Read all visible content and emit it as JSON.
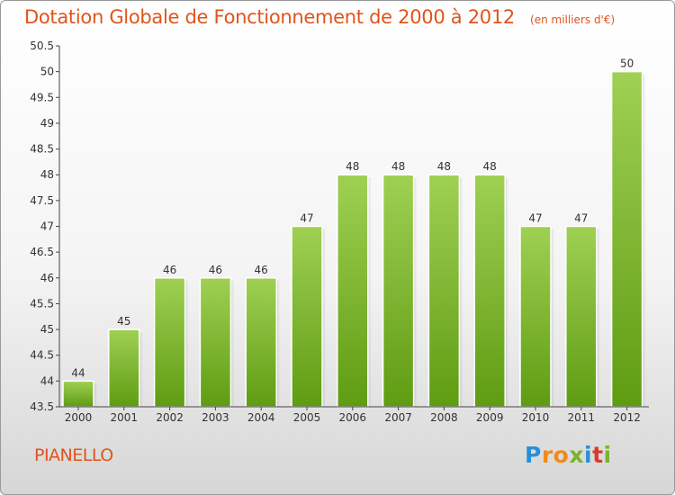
{
  "header": {
    "title": "Dotation Globale de Fonctionnement de 2000 à 2012",
    "unit_note": "(en milliers d'€)"
  },
  "footer": {
    "commune": "PIANELLO",
    "logo_letters": [
      "P",
      "r",
      "o",
      "x",
      "i",
      "t",
      "i"
    ],
    "logo_colors": [
      "#2a8fd6",
      "#f08a1c",
      "#f08a1c",
      "#7ab32e",
      "#2a8fd6",
      "#d93a2a",
      "#7ab32e"
    ]
  },
  "colors": {
    "title": "#e0541c",
    "bar_light": "#9fd053",
    "bar_dark": "#5f9c12",
    "axis_text": "#333333",
    "grid": "#c8c8c8"
  },
  "chart_data": {
    "type": "bar",
    "title": "Dotation Globale de Fonctionnement de 2000 à 2012",
    "subtitle": "(en milliers d'€)",
    "xlabel": "",
    "ylabel": "",
    "categories": [
      "2000",
      "2001",
      "2002",
      "2003",
      "2004",
      "2005",
      "2006",
      "2007",
      "2008",
      "2009",
      "2010",
      "2011",
      "2012"
    ],
    "values": [
      44,
      45,
      46,
      46,
      46,
      47,
      48,
      48,
      48,
      48,
      47,
      47,
      50
    ],
    "data_labels": [
      "44",
      "45",
      "46",
      "46",
      "46",
      "47",
      "48",
      "48",
      "48",
      "48",
      "47",
      "47",
      "50"
    ],
    "ylim": [
      43.5,
      50.5
    ],
    "yticks": [
      "43.5",
      "44",
      "44.5",
      "45",
      "45.5",
      "46",
      "46.5",
      "47",
      "47.5",
      "48",
      "48.5",
      "49",
      "49.5",
      "50",
      "50.5"
    ],
    "grid": false,
    "legend": "none"
  }
}
